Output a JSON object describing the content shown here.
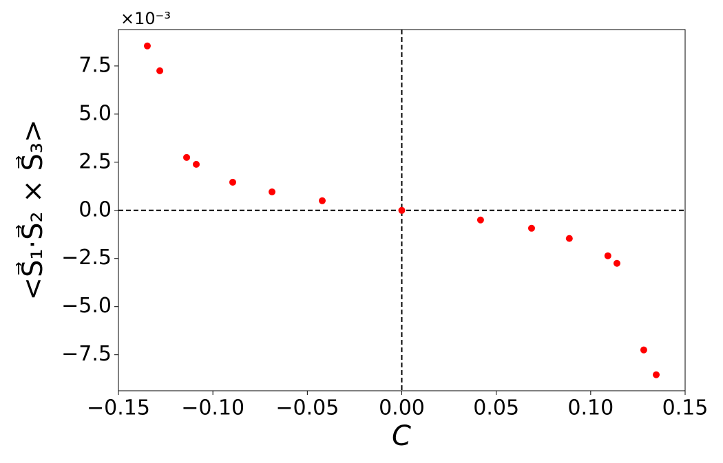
{
  "chart_data": {
    "type": "scatter",
    "x_label": "C",
    "y_label": "<S⃗₁·S⃗₂ × S⃗₃>",
    "y_offset_label": "×10⁻³",
    "color": "#ff0000",
    "x": [
      -0.1347,
      -0.1281,
      -0.1139,
      -0.1088,
      -0.0895,
      -0.0687,
      -0.0421,
      0,
      0.0417,
      0.0687,
      0.0887,
      0.1091,
      0.1139,
      0.1281,
      0.1347
    ],
    "values": [
      8.54,
      7.25,
      2.75,
      2.39,
      1.46,
      0.96,
      0.5,
      0,
      -0.5,
      -0.93,
      -1.46,
      -2.36,
      -2.75,
      -7.25,
      -8.54
    ],
    "xlim": [
      -0.15,
      0.15
    ],
    "ylim": [
      -9.37,
      9.39
    ],
    "xticks": [
      {
        "value": -0.15,
        "label": "−0.15"
      },
      {
        "value": -0.1,
        "label": "−0.10"
      },
      {
        "value": -0.05,
        "label": "−0.05"
      },
      {
        "value": 0,
        "label": "0.00"
      },
      0.05,
      {
        "value": 0.1,
        "label": "0.10"
      },
      0.15
    ],
    "yticks": [
      {
        "value": -7.5,
        "label": "−7.5"
      },
      {
        "value": -5,
        "label": "−5.0"
      },
      {
        "value": -2.5,
        "label": "−2.5"
      },
      {
        "value": 0,
        "label": "0.0"
      },
      2.5,
      {
        "value": 5,
        "label": "5.0"
      },
      7.5
    ]
  }
}
